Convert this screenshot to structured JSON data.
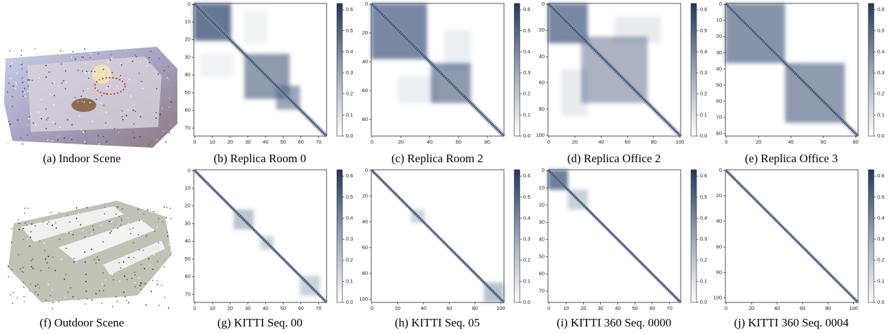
{
  "colorbar": {
    "lim": [
      0,
      0.63
    ],
    "ticks": [
      {
        "value": 0,
        "label": "0.0"
      },
      0.1,
      0.2,
      0.3,
      0.4,
      0.5,
      0.6
    ]
  },
  "panels": [
    {
      "caption": "(a) Indoor Scene"
    },
    {
      "caption": "(b) Replica Room 0",
      "lim": [
        -0.5,
        74.5
      ],
      "xticks": [
        0,
        10,
        20,
        30,
        40,
        50,
        60,
        70
      ],
      "yticks": [
        0,
        10,
        20,
        30,
        40,
        50,
        60,
        70
      ]
    },
    {
      "caption": "(c) Replica Room 2",
      "lim": [
        -0.5,
        91.5
      ],
      "xticks": [
        0,
        20,
        40,
        60,
        80
      ],
      "yticks": [
        0,
        20,
        40,
        60,
        80
      ]
    },
    {
      "caption": "(d) Replica Office 2",
      "lim": [
        -0.5,
        100.5
      ],
      "xticks": [
        0,
        20,
        40,
        60,
        80,
        100
      ],
      "yticks": [
        0,
        20,
        40,
        60,
        80,
        100
      ]
    },
    {
      "caption": "(e) Replica Office 3",
      "lim": [
        -0.5,
        81.5
      ],
      "xticks": [
        0,
        20,
        40,
        60,
        80
      ],
      "yticks": [
        0,
        10,
        20,
        30,
        40,
        50,
        60,
        70,
        80
      ]
    },
    {
      "caption": "(f) Outdoor Scene"
    },
    {
      "caption": "(g) KITTI Seq. 00",
      "lim": [
        -0.5,
        74.5
      ],
      "xticks": [
        0,
        10,
        20,
        30,
        40,
        50,
        60,
        70
      ],
      "yticks": [
        0,
        10,
        20,
        30,
        40,
        50,
        60,
        70
      ]
    },
    {
      "caption": "(h) KITTI Seq. 05",
      "lim": [
        -0.5,
        102.5
      ],
      "xticks": [
        0,
        20,
        40,
        60,
        80,
        100
      ],
      "yticks": [
        0,
        20,
        40,
        60,
        80,
        100
      ]
    },
    {
      "caption": "(i) KITTI 360 Seq. 0000",
      "lim": [
        -0.5,
        76.5
      ],
      "xticks": [
        0,
        10,
        20,
        30,
        40,
        50,
        60,
        70
      ],
      "yticks": [
        0,
        10,
        20,
        30,
        40,
        50,
        60,
        70
      ]
    },
    {
      "caption": "(j) KITTI 360 Seq. 0004",
      "lim": [
        -0.5,
        103.5
      ],
      "xticks": [
        0,
        20,
        40,
        60,
        80,
        100
      ],
      "yticks": [
        0,
        20,
        40,
        60,
        80,
        100
      ]
    }
  ]
}
